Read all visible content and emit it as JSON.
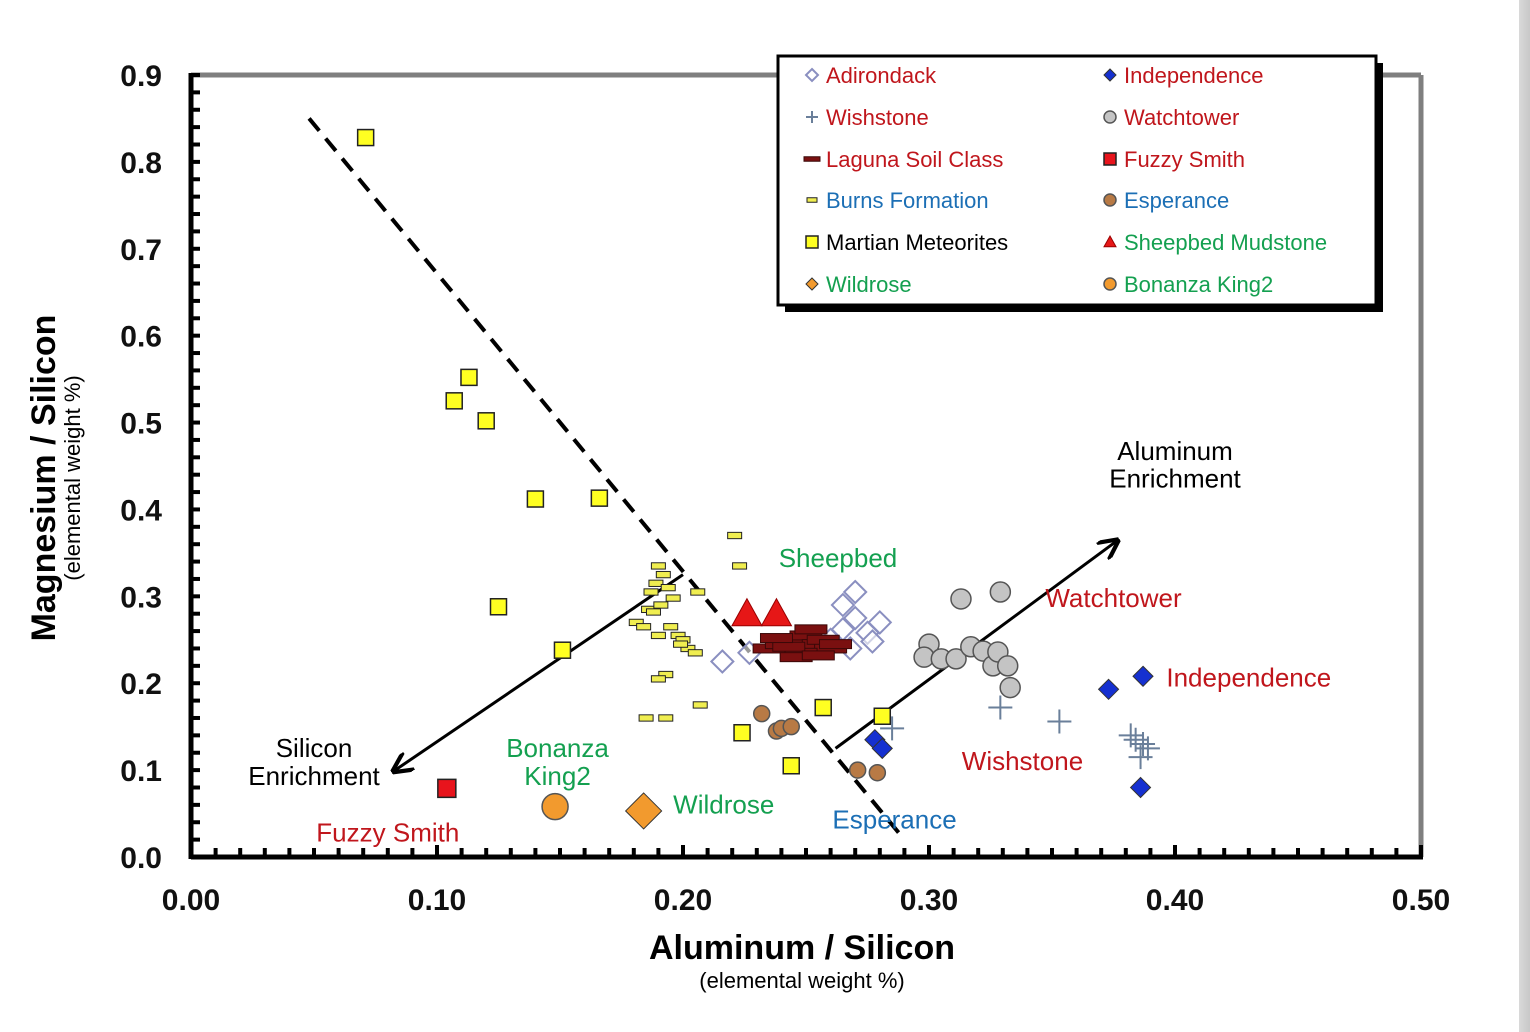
{
  "chart_data": {
    "type": "scatter",
    "xlabel": "Aluminum / Silicon",
    "xlabel_sub": "(elemental weight %)",
    "ylabel": "Magnesium / Silicon",
    "ylabel_sub": "(elemental weight %)",
    "xlim": [
      0.0,
      0.5
    ],
    "ylim": [
      0.0,
      0.9
    ],
    "x_ticks": [
      "0.00",
      "0.10",
      "0.20",
      "0.30",
      "0.40",
      "0.50"
    ],
    "y_ticks": [
      "0.0",
      "0.1",
      "0.2",
      "0.3",
      "0.4",
      "0.5",
      "0.6",
      "0.7",
      "0.8",
      "0.9"
    ],
    "legend_position": "top-right",
    "series": [
      {
        "name": "Adirondack",
        "marker": "diamond-open",
        "color": "#8a8fc0",
        "label_color": "#c0161c",
        "points": [
          [
            0.216,
            0.225
          ],
          [
            0.227,
            0.235
          ],
          [
            0.265,
            0.29
          ],
          [
            0.27,
            0.305
          ],
          [
            0.27,
            0.275
          ],
          [
            0.265,
            0.262
          ],
          [
            0.275,
            0.258
          ],
          [
            0.28,
            0.27
          ],
          [
            0.277,
            0.248
          ],
          [
            0.26,
            0.25
          ],
          [
            0.268,
            0.24
          ]
        ]
      },
      {
        "name": "Independence",
        "marker": "diamond",
        "color": "#1530d0",
        "label_color": "#c0161c",
        "points": [
          [
            0.373,
            0.193
          ],
          [
            0.387,
            0.208
          ],
          [
            0.386,
            0.08
          ],
          [
            0.278,
            0.135
          ],
          [
            0.281,
            0.125
          ]
        ]
      },
      {
        "name": "Wishstone",
        "marker": "plus",
        "color": "#6a7f9a",
        "label_color": "#c0161c",
        "points": [
          [
            0.285,
            0.148
          ],
          [
            0.329,
            0.172
          ],
          [
            0.353,
            0.156
          ],
          [
            0.382,
            0.14
          ],
          [
            0.387,
            0.13
          ],
          [
            0.389,
            0.125
          ],
          [
            0.386,
            0.115
          ],
          [
            0.384,
            0.135
          ]
        ]
      },
      {
        "name": "Watchtower",
        "marker": "circle",
        "color": "#c4c4c4",
        "label_color": "#c0161c",
        "points": [
          [
            0.313,
            0.297
          ],
          [
            0.329,
            0.305
          ],
          [
            0.3,
            0.245
          ],
          [
            0.298,
            0.23
          ],
          [
            0.305,
            0.228
          ],
          [
            0.311,
            0.228
          ],
          [
            0.317,
            0.242
          ],
          [
            0.322,
            0.237
          ],
          [
            0.326,
            0.22
          ],
          [
            0.328,
            0.236
          ],
          [
            0.332,
            0.22
          ],
          [
            0.333,
            0.195
          ]
        ]
      },
      {
        "name": "Laguna Soil Class",
        "marker": "dash",
        "color": "#7a1010",
        "label_color": "#c0161c",
        "points": [
          [
            0.235,
            0.24
          ],
          [
            0.24,
            0.245
          ],
          [
            0.245,
            0.25
          ],
          [
            0.25,
            0.255
          ],
          [
            0.255,
            0.245
          ],
          [
            0.26,
            0.24
          ],
          [
            0.248,
            0.235
          ],
          [
            0.252,
            0.262
          ],
          [
            0.243,
            0.242
          ],
          [
            0.257,
            0.25
          ],
          [
            0.262,
            0.245
          ],
          [
            0.238,
            0.252
          ],
          [
            0.246,
            0.23
          ],
          [
            0.255,
            0.232
          ]
        ]
      },
      {
        "name": "Fuzzy Smith",
        "marker": "square",
        "color": "#e8141c",
        "label_color": "#c0161c",
        "points": [
          [
            0.104,
            0.079
          ]
        ]
      },
      {
        "name": "Burns Formation",
        "marker": "dash-yellow",
        "color": "#f0ee50",
        "label_color": "#1c6fb5",
        "points": [
          [
            0.181,
            0.27
          ],
          [
            0.184,
            0.265
          ],
          [
            0.186,
            0.285
          ],
          [
            0.187,
            0.305
          ],
          [
            0.189,
            0.315
          ],
          [
            0.19,
            0.335
          ],
          [
            0.192,
            0.325
          ],
          [
            0.194,
            0.31
          ],
          [
            0.196,
            0.298
          ],
          [
            0.188,
            0.282
          ],
          [
            0.191,
            0.29
          ],
          [
            0.19,
            0.255
          ],
          [
            0.195,
            0.265
          ],
          [
            0.198,
            0.255
          ],
          [
            0.2,
            0.25
          ],
          [
            0.202,
            0.24
          ],
          [
            0.205,
            0.235
          ],
          [
            0.199,
            0.245
          ],
          [
            0.193,
            0.21
          ],
          [
            0.19,
            0.205
          ],
          [
            0.185,
            0.16
          ],
          [
            0.193,
            0.16
          ],
          [
            0.207,
            0.175
          ],
          [
            0.206,
            0.305
          ],
          [
            0.221,
            0.37
          ],
          [
            0.223,
            0.335
          ]
        ]
      },
      {
        "name": "Esperance",
        "marker": "circle",
        "color": "#b87a45",
        "label_color": "#1c6fb5",
        "points": [
          [
            0.232,
            0.165
          ],
          [
            0.238,
            0.145
          ],
          [
            0.24,
            0.148
          ],
          [
            0.244,
            0.15
          ],
          [
            0.271,
            0.1
          ],
          [
            0.279,
            0.097
          ]
        ]
      },
      {
        "name": "Martian Meteorites",
        "marker": "square",
        "color": "#ffff22",
        "label_color": "#000000",
        "points": [
          [
            0.071,
            0.828
          ],
          [
            0.113,
            0.552
          ],
          [
            0.107,
            0.525
          ],
          [
            0.12,
            0.502
          ],
          [
            0.14,
            0.412
          ],
          [
            0.166,
            0.413
          ],
          [
            0.125,
            0.288
          ],
          [
            0.151,
            0.238
          ],
          [
            0.224,
            0.143
          ],
          [
            0.244,
            0.105
          ],
          [
            0.257,
            0.172
          ],
          [
            0.281,
            0.162
          ]
        ]
      },
      {
        "name": "Sheepbed Mudstone",
        "marker": "triangle",
        "color": "#e61717",
        "label_color": "#14a050",
        "points": [
          [
            0.226,
            0.28
          ],
          [
            0.238,
            0.28
          ]
        ]
      },
      {
        "name": "Wildrose",
        "marker": "diamond",
        "color": "#f29a2e",
        "label_color": "#14a050",
        "points": [
          [
            0.184,
            0.053
          ]
        ]
      },
      {
        "name": "Bonanza King2",
        "marker": "circle",
        "color": "#f29a2e",
        "label_color": "#14a050",
        "points": [
          [
            0.148,
            0.058
          ]
        ]
      }
    ],
    "lines": [
      {
        "id": "dashed-divider",
        "style": "dashed",
        "x": [
          0.048,
          0.29
        ],
        "y": [
          0.85,
          0.02
        ]
      }
    ],
    "arrows": [
      {
        "id": "silicon-enrichment-arrow",
        "x": [
          0.2,
          0.083
        ],
        "y": [
          0.325,
          0.1
        ]
      },
      {
        "id": "aluminum-enrichment-arrow",
        "x": [
          0.262,
          0.376
        ],
        "y": [
          0.125,
          0.363
        ]
      }
    ],
    "annotations": [
      {
        "text": "Sheepbed",
        "x": 0.263,
        "y": 0.334,
        "color": "#14a050",
        "anchor": "middle"
      },
      {
        "text": "Watchtower",
        "x": 0.375,
        "y": 0.288,
        "color": "#c0161c",
        "anchor": "middle"
      },
      {
        "text": "Independence",
        "x": 0.43,
        "y": 0.196,
        "color": "#c0161c",
        "anchor": "middle"
      },
      {
        "text": "Wishstone",
        "x": 0.338,
        "y": 0.1,
        "color": "#c0161c",
        "anchor": "middle"
      },
      {
        "text": "Esperance",
        "x": 0.286,
        "y": 0.033,
        "color": "#1c6fb5",
        "anchor": "middle"
      },
      {
        "text": "Wildrose",
        "x": 0.196,
        "y": 0.49,
        "color": "#14a050",
        "anchor": "start",
        "y_actual": 0.05
      },
      {
        "text": "Fuzzy Smith",
        "x": 0.08,
        "y": 0.018,
        "color": "#c0161c",
        "anchor": "middle"
      },
      {
        "text": "Bonanza",
        "x": 0.149,
        "y": 0.115,
        "color": "#14a050",
        "anchor": "middle"
      },
      {
        "text": "King2",
        "x": 0.149,
        "y": 0.083,
        "color": "#14a050",
        "anchor": "middle"
      },
      {
        "text": "Silicon",
        "x": 0.05,
        "y": 0.115,
        "color": "#000000",
        "anchor": "middle"
      },
      {
        "text": "Enrichment",
        "x": 0.05,
        "y": 0.083,
        "color": "#000000",
        "anchor": "middle"
      },
      {
        "text": "Aluminum",
        "x": 0.4,
        "y": 0.457,
        "color": "#000000",
        "anchor": "middle"
      },
      {
        "text": "Enrichment",
        "x": 0.4,
        "y": 0.425,
        "color": "#000000",
        "anchor": "middle"
      }
    ]
  }
}
